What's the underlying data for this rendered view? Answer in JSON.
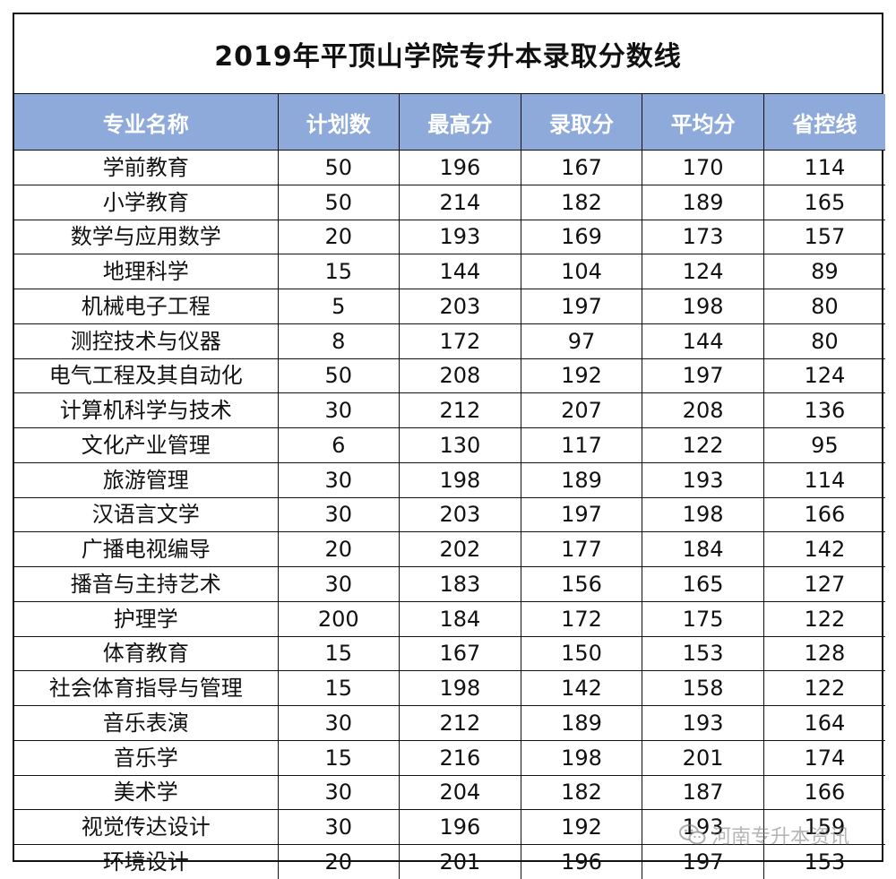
{
  "title": "2019年平顶山学院专升本录取分数线",
  "headers": [
    "专业名称",
    "计划数",
    "最高分",
    "录取分",
    "平均分",
    "省控线"
  ],
  "rows": [
    [
      "学前教育",
      "50",
      "196",
      "167",
      "170",
      "114"
    ],
    [
      "小学教育",
      "50",
      "214",
      "182",
      "189",
      "165"
    ],
    [
      "数学与应用数学",
      "20",
      "193",
      "169",
      "173",
      "157"
    ],
    [
      "地理科学",
      "15",
      "144",
      "104",
      "124",
      "89"
    ],
    [
      "机械电子工程",
      "5",
      "203",
      "197",
      "198",
      "80"
    ],
    [
      "测控技术与仪器",
      "8",
      "172",
      "97",
      "144",
      "80"
    ],
    [
      "电气工程及其自动化",
      "50",
      "208",
      "192",
      "197",
      "124"
    ],
    [
      "计算机科学与技术",
      "30",
      "212",
      "207",
      "208",
      "136"
    ],
    [
      "文化产业管理",
      "6",
      "130",
      "117",
      "122",
      "95"
    ],
    [
      "旅游管理",
      "30",
      "198",
      "189",
      "193",
      "114"
    ],
    [
      "汉语言文学",
      "30",
      "203",
      "197",
      "198",
      "166"
    ],
    [
      "广播电视编导",
      "20",
      "202",
      "177",
      "184",
      "142"
    ],
    [
      "播音与主持艺术",
      "30",
      "183",
      "156",
      "165",
      "127"
    ],
    [
      "护理学",
      "200",
      "184",
      "172",
      "175",
      "122"
    ],
    [
      "体育教育",
      "15",
      "167",
      "150",
      "153",
      "128"
    ],
    [
      "社会体育指导与管理",
      "15",
      "198",
      "142",
      "158",
      "122"
    ],
    [
      "音乐表演",
      "30",
      "212",
      "189",
      "193",
      "164"
    ],
    [
      "音乐学",
      "15",
      "216",
      "198",
      "201",
      "174"
    ],
    [
      "美术学",
      "30",
      "204",
      "182",
      "187",
      "166"
    ],
    [
      "视觉传达设计",
      "30",
      "196",
      "192",
      "193",
      "159"
    ],
    [
      "环境设计",
      "20",
      "201",
      "196",
      "197",
      "153"
    ]
  ],
  "colors": {
    "header_bg": "#8eaadb",
    "header_text": "#ffffff",
    "border": "#111111"
  },
  "watermark": {
    "icon": "wechat-icon",
    "text": "河南专升本资讯"
  }
}
